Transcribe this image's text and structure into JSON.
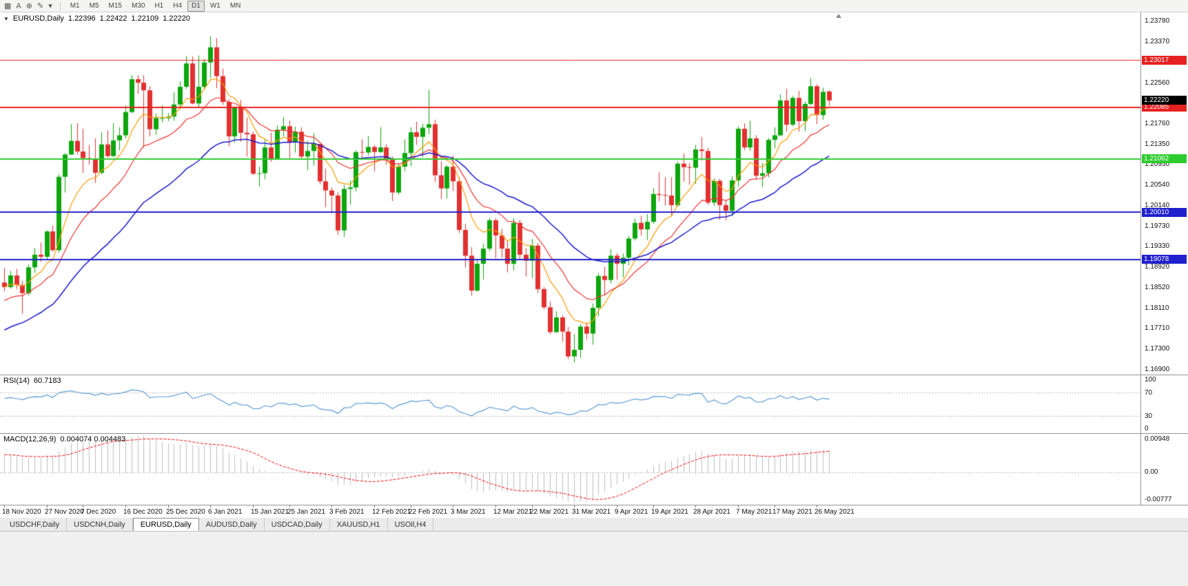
{
  "toolbar": {
    "icons": [
      {
        "name": "chart-grid-icon",
        "glyph": "▦"
      },
      {
        "name": "text-tool-icon",
        "glyph": "A"
      },
      {
        "name": "crosshair-tool-icon",
        "glyph": "⊕"
      },
      {
        "name": "draw-tool-icon",
        "glyph": "✎"
      },
      {
        "name": "draw-dropdown-icon",
        "glyph": "▾"
      }
    ],
    "timeframes": [
      {
        "label": "M1",
        "active": false
      },
      {
        "label": "M5",
        "active": false
      },
      {
        "label": "M15",
        "active": false
      },
      {
        "label": "M30",
        "active": false
      },
      {
        "label": "H1",
        "active": false
      },
      {
        "label": "H4",
        "active": false
      },
      {
        "label": "D1",
        "active": true
      },
      {
        "label": "W1",
        "active": false
      },
      {
        "label": "MN",
        "active": false
      }
    ]
  },
  "price_panel": {
    "collapse_glyph": "▼",
    "title_symbol": "EURUSD,Daily",
    "ohlc": {
      "open": "1.22396",
      "high": "1.22422",
      "low": "1.22109",
      "close": "1.22220"
    },
    "current_price": {
      "value": "1.22220",
      "bg": "#000000"
    }
  },
  "rsi_panel": {
    "label": "RSI(14)",
    "value": "60.7183",
    "ticks": [
      "100",
      "70",
      "30",
      "0"
    ],
    "dotted_levels": [
      70,
      30
    ]
  },
  "macd_panel": {
    "label": "MACD(12,26,9)",
    "values": "0.004074 0.004483",
    "tick_top": "0.00948",
    "tick_zero": "0.00",
    "tick_bottom": "-0.00777"
  },
  "tabs": [
    {
      "label": "USDCHF,Daily",
      "active": false
    },
    {
      "label": "USDCNH,Daily",
      "active": false
    },
    {
      "label": "EURUSD,Daily",
      "active": true
    },
    {
      "label": "AUDUSD,Daily",
      "active": false
    },
    {
      "label": "USDCAD,Daily",
      "active": false
    },
    {
      "label": "XAUUSD,H1",
      "active": false
    },
    {
      "label": "USOil,H4",
      "active": false
    }
  ],
  "colors": {
    "bull": "#0da60d",
    "bear": "#e23030",
    "rsi": "#5b9bd5",
    "macd_hist": "#bdbdbd",
    "macd_signal": "#ff0000",
    "dotted_grid": "#b8b8b8"
  },
  "chart_data": {
    "type": "candlestick",
    "symbol": "EURUSD",
    "timeframe": "Daily",
    "title": "EURUSD,Daily 1.22396 1.22422 1.22109 1.22220",
    "y_axis": {
      "min": 1.168,
      "max": 1.2396,
      "ticks": [
        "1.23780",
        "1.23370",
        "1.22560",
        "1.21760",
        "1.21350",
        "1.20950",
        "1.20540",
        "1.20140",
        "1.19730",
        "1.19330",
        "1.18920",
        "1.18520",
        "1.18110",
        "1.17710",
        "1.17300",
        "1.16900"
      ]
    },
    "levels": [
      {
        "price": 1.23017,
        "label": "1.23017",
        "color": "#e62020",
        "width": 1
      },
      {
        "price": 1.22085,
        "label": "1.22085",
        "color": "#e62020",
        "width": 2
      },
      {
        "price": 1.21062,
        "label": "1.21062",
        "color": "#2fcc2f",
        "width": 2
      },
      {
        "price": 1.2001,
        "label": "1.20010",
        "color": "#2020cc",
        "width": 2
      },
      {
        "price": 1.19078,
        "label": "1.19078",
        "color": "#2020cc",
        "width": 2
      }
    ],
    "current_price": 1.2222,
    "moving_averages": [
      {
        "name": "ma-fast",
        "period": 8,
        "color": "#ff9c00",
        "seed_offset": 0,
        "width": 1.2
      },
      {
        "name": "ma-medium",
        "period": 16,
        "color": "#f03030",
        "seed_offset": -0.003,
        "width": 1.2
      },
      {
        "name": "ma-slow",
        "period": 34,
        "color": "#1a1ad0",
        "seed_offset": -0.009,
        "width": 1.5
      }
    ],
    "rsi": {
      "period": 14,
      "last_value": "60.7183"
    },
    "macd": {
      "fast": 12,
      "slow": 26,
      "signal": 9,
      "last_main": "0.004074",
      "last_signal": "0.004483"
    },
    "x_labels": [
      [
        0,
        "18 Nov 2020"
      ],
      [
        7,
        "27 Nov 2020"
      ],
      [
        13,
        "7 Dec 2020"
      ],
      [
        20,
        "16 Dec 2020"
      ],
      [
        27,
        "25 Dec 2020"
      ],
      [
        34,
        "6 Jan 2021"
      ],
      [
        41,
        "15 Jan 2021"
      ],
      [
        47,
        "25 Jan 2021"
      ],
      [
        54,
        "3 Feb 2021"
      ],
      [
        61,
        "12 Feb 2021"
      ],
      [
        67,
        "22 Feb 2021"
      ],
      [
        74,
        "3 Mar 2021"
      ],
      [
        81,
        "12 Mar 2021"
      ],
      [
        87,
        "22 Mar 2021"
      ],
      [
        94,
        "31 Mar 2021"
      ],
      [
        101,
        "9 Apr 2021"
      ],
      [
        107,
        "19 Apr 2021"
      ],
      [
        114,
        "28 Apr 2021"
      ],
      [
        121,
        "7 May 2021"
      ],
      [
        127,
        "17 May 2021"
      ],
      [
        134,
        "26 May 2021"
      ]
    ],
    "candles": [
      [
        1.1862,
        1.1891,
        1.1845,
        1.1853
      ],
      [
        1.1853,
        1.1885,
        1.185,
        1.1876
      ],
      [
        1.1876,
        1.1889,
        1.1849,
        1.1857
      ],
      [
        1.1857,
        1.1865,
        1.18,
        1.1841
      ],
      [
        1.1841,
        1.1898,
        1.1836,
        1.1892
      ],
      [
        1.1892,
        1.193,
        1.1881,
        1.1917
      ],
      [
        1.1917,
        1.1941,
        1.1903,
        1.1913
      ],
      [
        1.1913,
        1.1965,
        1.1906,
        1.1963
      ],
      [
        1.1963,
        1.1975,
        1.1923,
        1.1926
      ],
      [
        1.1926,
        1.2076,
        1.1921,
        1.2071
      ],
      [
        1.2071,
        1.2118,
        1.204,
        1.2115
      ],
      [
        1.2115,
        1.2175,
        1.2114,
        1.2142
      ],
      [
        1.2142,
        1.2177,
        1.2115,
        1.2121
      ],
      [
        1.2121,
        1.2166,
        1.2079,
        1.2108
      ],
      [
        1.2108,
        1.2134,
        1.2095,
        1.2105
      ],
      [
        1.2105,
        1.2147,
        1.2059,
        1.2079
      ],
      [
        1.2079,
        1.2159,
        1.2076,
        1.2135
      ],
      [
        1.2135,
        1.2163,
        1.2109,
        1.2112
      ],
      [
        1.2112,
        1.2177,
        1.211,
        1.2143
      ],
      [
        1.2143,
        1.2169,
        1.2123,
        1.2153
      ],
      [
        1.2153,
        1.2212,
        1.2147,
        1.2199
      ],
      [
        1.2199,
        1.2272,
        1.2197,
        1.2264
      ],
      [
        1.2264,
        1.2272,
        1.2235,
        1.2257
      ],
      [
        1.2257,
        1.2272,
        1.2129,
        1.2242
      ],
      [
        1.2242,
        1.225,
        1.2151,
        1.2165
      ],
      [
        1.2165,
        1.2196,
        1.2154,
        1.2187
      ],
      [
        1.2187,
        1.2212,
        1.2179,
        1.2187
      ],
      [
        1.2187,
        1.2197,
        1.2181,
        1.219
      ],
      [
        1.219,
        1.2238,
        1.2182,
        1.2214
      ],
      [
        1.2214,
        1.226,
        1.2208,
        1.2249
      ],
      [
        1.2249,
        1.231,
        1.2245,
        1.2295
      ],
      [
        1.2295,
        1.2309,
        1.2214,
        1.2216
      ],
      [
        1.2216,
        1.2311,
        1.2208,
        1.2249
      ],
      [
        1.2249,
        1.2304,
        1.2244,
        1.2297
      ],
      [
        1.2297,
        1.2349,
        1.2266,
        1.2327
      ],
      [
        1.2327,
        1.2345,
        1.2246,
        1.227
      ],
      [
        1.227,
        1.2285,
        1.2213,
        1.2219
      ],
      [
        1.2219,
        1.2224,
        1.2131,
        1.2151
      ],
      [
        1.2151,
        1.221,
        1.2139,
        1.2208
      ],
      [
        1.2208,
        1.2223,
        1.214,
        1.2158
      ],
      [
        1.2158,
        1.2188,
        1.2111,
        1.2155
      ],
      [
        1.2155,
        1.216,
        1.2075,
        1.2077
      ],
      [
        1.2077,
        1.2091,
        1.2052,
        1.2078
      ],
      [
        1.2078,
        1.2145,
        1.2066,
        1.2129
      ],
      [
        1.2129,
        1.2158,
        1.2101,
        1.2105
      ],
      [
        1.2105,
        1.2173,
        1.2104,
        1.2164
      ],
      [
        1.2164,
        1.2189,
        1.2151,
        1.2171
      ],
      [
        1.2171,
        1.2182,
        1.2108,
        1.2139
      ],
      [
        1.2139,
        1.217,
        1.2119,
        1.216
      ],
      [
        1.216,
        1.2169,
        1.2108,
        1.2111
      ],
      [
        1.2111,
        1.2142,
        1.2084,
        1.2122
      ],
      [
        1.2122,
        1.2157,
        1.2093,
        1.2136
      ],
      [
        1.2136,
        1.2136,
        1.2056,
        1.2062
      ],
      [
        1.2062,
        1.2087,
        1.2011,
        1.2044
      ],
      [
        1.2044,
        1.205,
        1.1999,
        1.2034
      ],
      [
        1.2034,
        1.204,
        1.1956,
        1.1965
      ],
      [
        1.1965,
        1.2055,
        1.1952,
        1.2047
      ],
      [
        1.2047,
        1.2064,
        1.2016,
        1.205
      ],
      [
        1.205,
        1.2123,
        1.2042,
        1.212
      ],
      [
        1.212,
        1.2145,
        1.2106,
        1.2119
      ],
      [
        1.2119,
        1.2151,
        1.2113,
        1.213
      ],
      [
        1.213,
        1.2134,
        1.2082,
        1.212
      ],
      [
        1.212,
        1.2169,
        1.2118,
        1.2129
      ],
      [
        1.2129,
        1.2135,
        1.2095,
        1.2106
      ],
      [
        1.2106,
        1.2111,
        1.2023,
        1.204
      ],
      [
        1.204,
        1.2098,
        1.2036,
        1.2091
      ],
      [
        1.2091,
        1.2145,
        1.2082,
        1.2118
      ],
      [
        1.2118,
        1.2169,
        1.2092,
        1.2159
      ],
      [
        1.2159,
        1.218,
        1.2134,
        1.215
      ],
      [
        1.215,
        1.2176,
        1.211,
        1.2168
      ],
      [
        1.2168,
        1.2243,
        1.2155,
        1.2175
      ],
      [
        1.2175,
        1.2184,
        1.2061,
        1.2074
      ],
      [
        1.2074,
        1.2101,
        1.2027,
        1.2048
      ],
      [
        1.2048,
        1.2094,
        1.2028,
        1.2091
      ],
      [
        1.2091,
        1.2113,
        1.2043,
        1.2062
      ],
      [
        1.2062,
        1.2069,
        1.196,
        1.1966
      ],
      [
        1.1966,
        1.1978,
        1.1892,
        1.1915
      ],
      [
        1.1915,
        1.1932,
        1.1836,
        1.1846
      ],
      [
        1.1846,
        1.1907,
        1.1844,
        1.1899
      ],
      [
        1.1899,
        1.1939,
        1.1868,
        1.1929
      ],
      [
        1.1929,
        1.199,
        1.1924,
        1.1985
      ],
      [
        1.1985,
        1.1989,
        1.191,
        1.1955
      ],
      [
        1.1955,
        1.1968,
        1.1911,
        1.1929
      ],
      [
        1.1929,
        1.1943,
        1.1882,
        1.1899
      ],
      [
        1.1899,
        1.1989,
        1.1886,
        1.198
      ],
      [
        1.198,
        1.1986,
        1.1906,
        1.1917
      ],
      [
        1.1917,
        1.193,
        1.1874,
        1.1905
      ],
      [
        1.1905,
        1.1948,
        1.1871,
        1.1935
      ],
      [
        1.1935,
        1.194,
        1.1841,
        1.1849
      ],
      [
        1.1849,
        1.1853,
        1.1809,
        1.1813
      ],
      [
        1.1813,
        1.1824,
        1.176,
        1.1764
      ],
      [
        1.1764,
        1.1805,
        1.1762,
        1.1793
      ],
      [
        1.1793,
        1.1797,
        1.1745,
        1.1765
      ],
      [
        1.1765,
        1.1774,
        1.1711,
        1.1716
      ],
      [
        1.1716,
        1.176,
        1.1704,
        1.1729
      ],
      [
        1.1729,
        1.178,
        1.1713,
        1.1775
      ],
      [
        1.1775,
        1.1783,
        1.1749,
        1.1761
      ],
      [
        1.1761,
        1.1821,
        1.1739,
        1.1812
      ],
      [
        1.1812,
        1.188,
        1.1795,
        1.1875
      ],
      [
        1.1875,
        1.1893,
        1.1837,
        1.1867
      ],
      [
        1.1867,
        1.1928,
        1.186,
        1.1915
      ],
      [
        1.1915,
        1.192,
        1.1867,
        1.1899
      ],
      [
        1.1899,
        1.1919,
        1.1872,
        1.1911
      ],
      [
        1.1911,
        1.1954,
        1.1896,
        1.1949
      ],
      [
        1.1949,
        1.1988,
        1.1945,
        1.198
      ],
      [
        1.198,
        1.1994,
        1.1955,
        1.1967
      ],
      [
        1.1967,
        1.1997,
        1.1946,
        1.1982
      ],
      [
        1.1982,
        1.2048,
        1.1978,
        1.2037
      ],
      [
        1.2037,
        1.208,
        1.2023,
        1.2035
      ],
      [
        1.2035,
        1.207,
        1.2014,
        1.2034
      ],
      [
        1.2034,
        1.207,
        1.1994,
        1.2015
      ],
      [
        1.2015,
        1.2101,
        1.2012,
        1.2097
      ],
      [
        1.2097,
        1.2117,
        1.2061,
        1.209
      ],
      [
        1.209,
        1.2098,
        1.2055,
        1.2089
      ],
      [
        1.2089,
        1.2134,
        1.2057,
        1.2125
      ],
      [
        1.2125,
        1.215,
        1.2103,
        1.2122
      ],
      [
        1.2122,
        1.2128,
        1.2016,
        1.202
      ],
      [
        1.202,
        1.2068,
        1.2013,
        1.2063
      ],
      [
        1.2063,
        1.2067,
        1.1986,
        1.2015
      ],
      [
        1.2015,
        1.2025,
        1.1985,
        1.2004
      ],
      [
        1.2004,
        1.2072,
        1.1993,
        1.2064
      ],
      [
        1.2064,
        1.2171,
        1.2052,
        1.2166
      ],
      [
        1.2166,
        1.2177,
        1.2124,
        1.2129
      ],
      [
        1.2129,
        1.2182,
        1.2122,
        1.2147
      ],
      [
        1.2147,
        1.2153,
        1.2065,
        1.2073
      ],
      [
        1.2073,
        1.2098,
        1.2051,
        1.2078
      ],
      [
        1.2078,
        1.2148,
        1.207,
        1.2144
      ],
      [
        1.2144,
        1.2169,
        1.2127,
        1.2153
      ],
      [
        1.2153,
        1.2234,
        1.2151,
        1.2222
      ],
      [
        1.2222,
        1.2245,
        1.216,
        1.2174
      ],
      [
        1.2174,
        1.2231,
        1.2171,
        1.2227
      ],
      [
        1.2227,
        1.2241,
        1.216,
        1.2181
      ],
      [
        1.2181,
        1.222,
        1.2161,
        1.2215
      ],
      [
        1.2215,
        1.2266,
        1.2212,
        1.225
      ],
      [
        1.225,
        1.2254,
        1.2175,
        1.2193
      ],
      [
        1.2193,
        1.2247,
        1.2184,
        1.2239
      ],
      [
        1.22396,
        1.22422,
        1.22109,
        1.2222
      ]
    ]
  }
}
